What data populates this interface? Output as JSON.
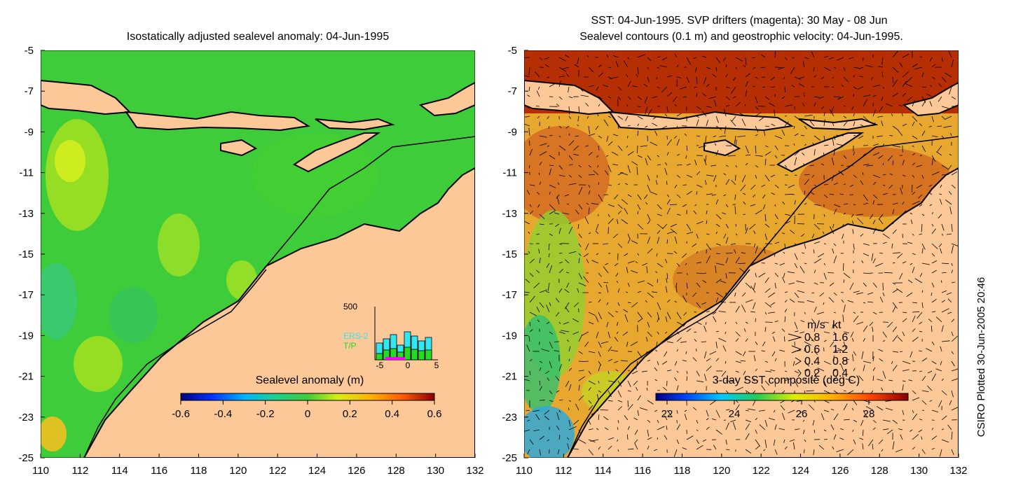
{
  "left_panel": {
    "title": "Isostatically adjusted sealevel anomaly: 04-Jun-1995",
    "colorbar_label": "Sealevel anomaly (m)",
    "colorbar_ticks": [
      "-0.6",
      "-0.4",
      "-0.2",
      "0",
      "0.2",
      "0.4",
      "0.6"
    ],
    "inset": {
      "y_max_label": "500",
      "x_ticks": [
        "-5",
        "0",
        "5"
      ],
      "legend": [
        {
          "label": "ERS-2",
          "color": "#33e6f0"
        },
        {
          "label": "T/P",
          "color": "#22dd22"
        }
      ]
    }
  },
  "right_panel": {
    "title_line1": "SST: 04-Jun-1995. SVP drifters (magenta): 30 May - 08 Jun",
    "title_line2": "Sealevel contours (0.1 m) and geostrophic velocity: 04-Jun-1995.",
    "colorbar_label": "3-day SST composite (deg C)",
    "colorbar_ticks": [
      "22",
      "24",
      "26",
      "28"
    ],
    "velocity_legend": {
      "header_ms": "m/s",
      "header_kt": "kt",
      "rows": [
        {
          "ms": "0.8",
          "kt": "1.6"
        },
        {
          "ms": "0.6",
          "kt": "1.2"
        },
        {
          "ms": "0.4",
          "kt": "0.8"
        },
        {
          "ms": "0.2",
          "kt": "0.4"
        }
      ]
    }
  },
  "axes": {
    "x_ticks": [
      "110",
      "112",
      "114",
      "116",
      "118",
      "120",
      "122",
      "124",
      "126",
      "128",
      "130",
      "132"
    ],
    "y_ticks": [
      "-5",
      "-7",
      "-9",
      "-11",
      "-13",
      "-15",
      "-17",
      "-19",
      "-21",
      "-23",
      "-25"
    ]
  },
  "footer": {
    "plotted_text": "CSIRO Plotted 30-Jun-2005 20:46"
  },
  "colors": {
    "land": "#fcc898",
    "coast": "#000000",
    "sea_left": "#3fcc3a",
    "sea_right": "#e8a830"
  }
}
